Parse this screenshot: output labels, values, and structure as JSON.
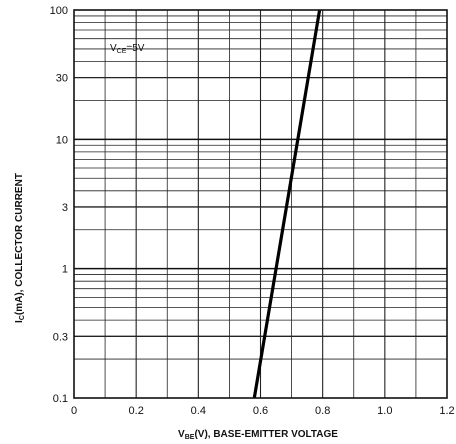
{
  "chart_data": {
    "type": "line",
    "title": "",
    "xlabel_main": "V",
    "xlabel_sub": "BE",
    "xlabel_rest": "(V), BASE-EMITTER VOLTAGE",
    "ylabel_main": "I",
    "ylabel_sub": "C",
    "ylabel_rest": "(mA), COLLECTOR CURRENT",
    "annotation_main": "V",
    "annotation_sub": "CE",
    "annotation_rest": "=5V",
    "x_scale": "linear",
    "y_scale": "log",
    "xlim": [
      0,
      1.2
    ],
    "ylim": [
      0.1,
      100
    ],
    "x_ticks": [
      0,
      0.2,
      0.4,
      0.6,
      0.8,
      1.0,
      1.2
    ],
    "x_tick_labels": [
      "0",
      "0.2",
      "0.4",
      "0.6",
      "0.8",
      "1.0",
      "1.2"
    ],
    "y_ticks": [
      0.1,
      0.3,
      1,
      3,
      10,
      30,
      100
    ],
    "y_tick_labels": [
      "0.1",
      "0.3",
      "1",
      "3",
      "10",
      "30",
      "100"
    ],
    "grid": true,
    "series": [
      {
        "x": [
          0.58,
          0.79
        ],
        "y": [
          0.1,
          100
        ]
      }
    ]
  }
}
